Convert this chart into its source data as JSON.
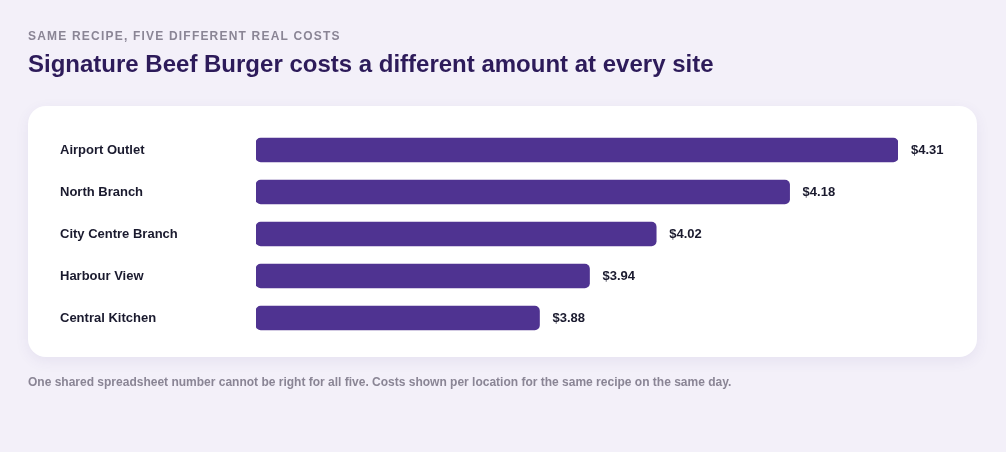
{
  "chart_data": {
    "type": "bar",
    "orientation": "horizontal",
    "subtitle": "SAME RECIPE, FIVE DIFFERENT REAL COSTS",
    "title": "Signature Beef Burger costs a different amount at every site",
    "categories": [
      "Airport Outlet",
      "North Branch",
      "City Centre Branch",
      "Harbour View",
      "Central Kitchen"
    ],
    "values": [
      4.31,
      4.18,
      4.02,
      3.94,
      3.88
    ],
    "value_labels": [
      "$4.31",
      "$4.18",
      "$4.02",
      "$3.94",
      "$3.88"
    ],
    "color": "#4f3391",
    "xlim": [
      3.54,
      4.31
    ],
    "tick_labels": "y",
    "annotations": [
      "One shared spreadsheet number cannot be right for all five. Costs shown per location for the same recipe on the same day."
    ]
  }
}
